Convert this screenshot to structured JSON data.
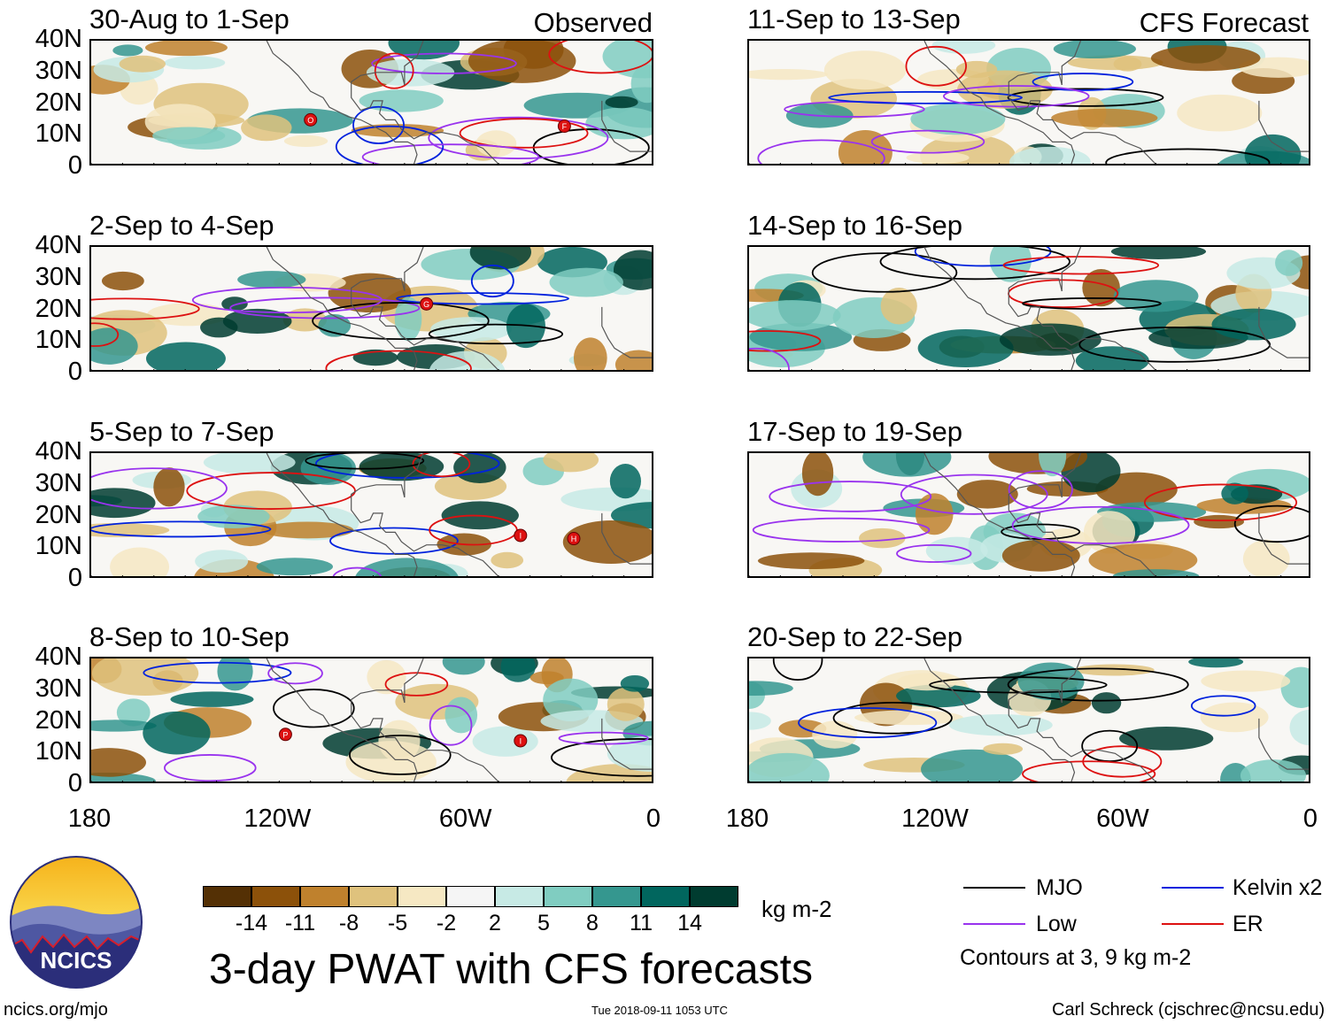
{
  "figure_title": "3-day PWAT with CFS forecasts",
  "label_observed": "Observed",
  "label_forecast": "CFS Forecast",
  "units": "kg m-2",
  "site_url": "ncics.org/mjo",
  "timestamp": "Tue 2018-09-11 1053 UTC",
  "author": "Carl Schreck (cjschrec@ncsu.edu)",
  "logo_text": "NCICS",
  "legend": {
    "mjo": "MJO",
    "kelvin": "Kelvin x2",
    "low": "Low",
    "er": "ER",
    "contours_note": "Contours at 3, 9 kg m-2",
    "colors": {
      "mjo": "#000000",
      "kelvin": "#0022dd",
      "low": "#9933ee",
      "er": "#dd1111"
    }
  },
  "chart_data": {
    "type": "heatmap",
    "variable": "Precipitable water anomaly",
    "x_axis": {
      "range": [
        -180,
        0
      ],
      "ticks": [
        -180,
        -120,
        -60,
        0
      ],
      "tick_labels": [
        "180",
        "120W",
        "60W",
        "0"
      ]
    },
    "y_axis": {
      "range": [
        0,
        40
      ],
      "ticks": [
        0,
        10,
        20,
        30,
        40
      ],
      "tick_labels": [
        "0",
        "10N",
        "20N",
        "30N",
        "40N"
      ]
    },
    "colorbar": {
      "labels": [
        "-14",
        "-11",
        "-8",
        "-5",
        "-2",
        "2",
        "5",
        "8",
        "11",
        "14"
      ],
      "colors": [
        "#543005",
        "#8c510a",
        "#bf812d",
        "#dfc27d",
        "#f6e8c3",
        "#f5f5f5",
        "#c7eae5",
        "#80cdc1",
        "#35978f",
        "#01665e",
        "#003c30"
      ]
    },
    "panels": [
      {
        "title": "30-Aug to 1-Sep",
        "column": "observed",
        "storms": [
          {
            "letter": "O",
            "lon": -110,
            "lat": 15
          },
          {
            "letter": "F",
            "lon": -29,
            "lat": 13
          }
        ]
      },
      {
        "title": "2-Sep to 4-Sep",
        "column": "observed",
        "storms": [
          {
            "letter": "G",
            "lon": -73,
            "lat": 22
          }
        ]
      },
      {
        "title": "5-Sep to 7-Sep",
        "column": "observed",
        "storms": [
          {
            "letter": "I",
            "lon": -43,
            "lat": 14
          },
          {
            "letter": "H",
            "lon": -26,
            "lat": 13
          }
        ]
      },
      {
        "title": "8-Sep to 10-Sep",
        "column": "observed",
        "storms": [
          {
            "letter": "P",
            "lon": -118,
            "lat": 16
          },
          {
            "letter": "I",
            "lon": -43,
            "lat": 14
          }
        ]
      },
      {
        "title": "11-Sep to 13-Sep",
        "column": "forecast",
        "storms": []
      },
      {
        "title": "14-Sep to 16-Sep",
        "column": "forecast",
        "storms": []
      },
      {
        "title": "17-Sep to 19-Sep",
        "column": "forecast",
        "storms": []
      },
      {
        "title": "20-Sep to 22-Sep",
        "column": "forecast",
        "storms": []
      }
    ]
  }
}
